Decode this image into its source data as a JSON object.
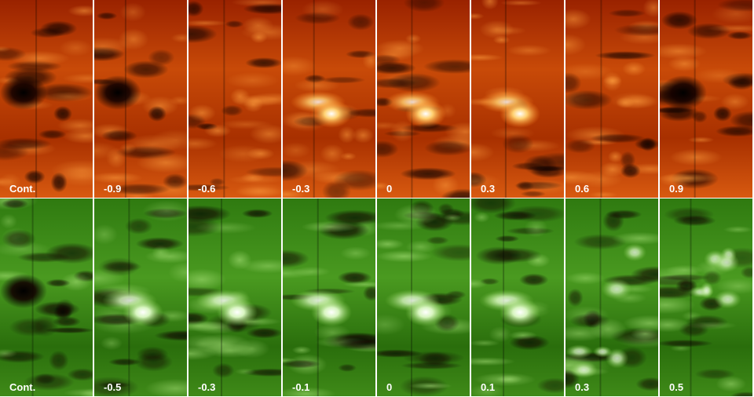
{
  "rows": [
    {
      "panels": [
        {
          "label": "Cont."
        },
        {
          "label": "-0.9"
        },
        {
          "label": "-0.6"
        },
        {
          "label": "-0.3"
        },
        {
          "label": "0"
        },
        {
          "label": "0.3"
        },
        {
          "label": "0.6"
        },
        {
          "label": "0.9"
        }
      ]
    },
    {
      "panels": [
        {
          "label": "Cont."
        },
        {
          "label": "-0.5"
        },
        {
          "label": "-0.3"
        },
        {
          "label": "-0.1"
        },
        {
          "label": "0"
        },
        {
          "label": "0.1"
        },
        {
          "label": "0.3"
        },
        {
          "label": "0.5"
        }
      ]
    }
  ]
}
